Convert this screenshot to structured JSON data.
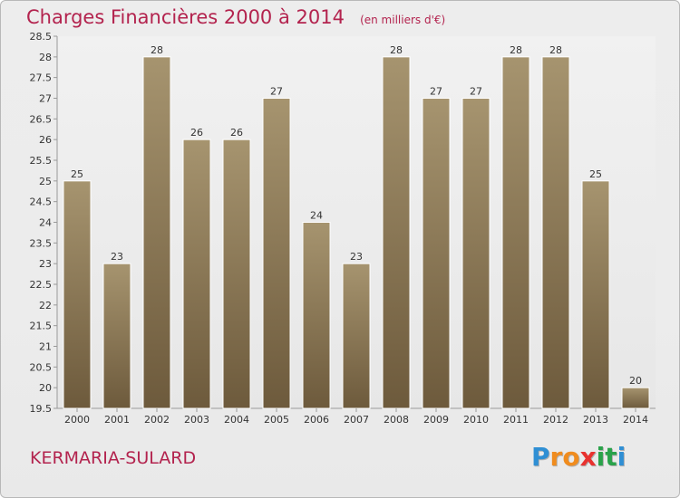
{
  "title": "Charges Financières 2000 à 2014",
  "subtitle": "(en milliers d'€)",
  "location": "KERMARIA-SULARD",
  "brand": {
    "letters": [
      "P",
      "r",
      "o",
      "x",
      "i",
      "t",
      "i"
    ]
  },
  "chart_data": {
    "type": "bar",
    "categories": [
      "2000",
      "2001",
      "2002",
      "2003",
      "2004",
      "2005",
      "2006",
      "2007",
      "2008",
      "2009",
      "2010",
      "2011",
      "2012",
      "2013",
      "2014"
    ],
    "values": [
      25,
      23,
      28,
      26,
      26,
      27,
      24,
      23,
      28,
      27,
      27,
      28,
      28,
      25,
      20
    ],
    "title": "Charges Financières 2000 à 2014",
    "subtitle": "(en milliers d'€)",
    "xlabel": "",
    "ylabel": "",
    "ylim": [
      19.5,
      28.5
    ],
    "yticks": [
      19.5,
      20,
      20.5,
      21,
      21.5,
      22,
      22.5,
      23,
      23.5,
      24,
      24.5,
      25,
      25.5,
      26,
      26.5,
      27,
      27.5,
      28,
      28.5
    ],
    "grid": false,
    "bar_color": "#8e7a5c"
  }
}
